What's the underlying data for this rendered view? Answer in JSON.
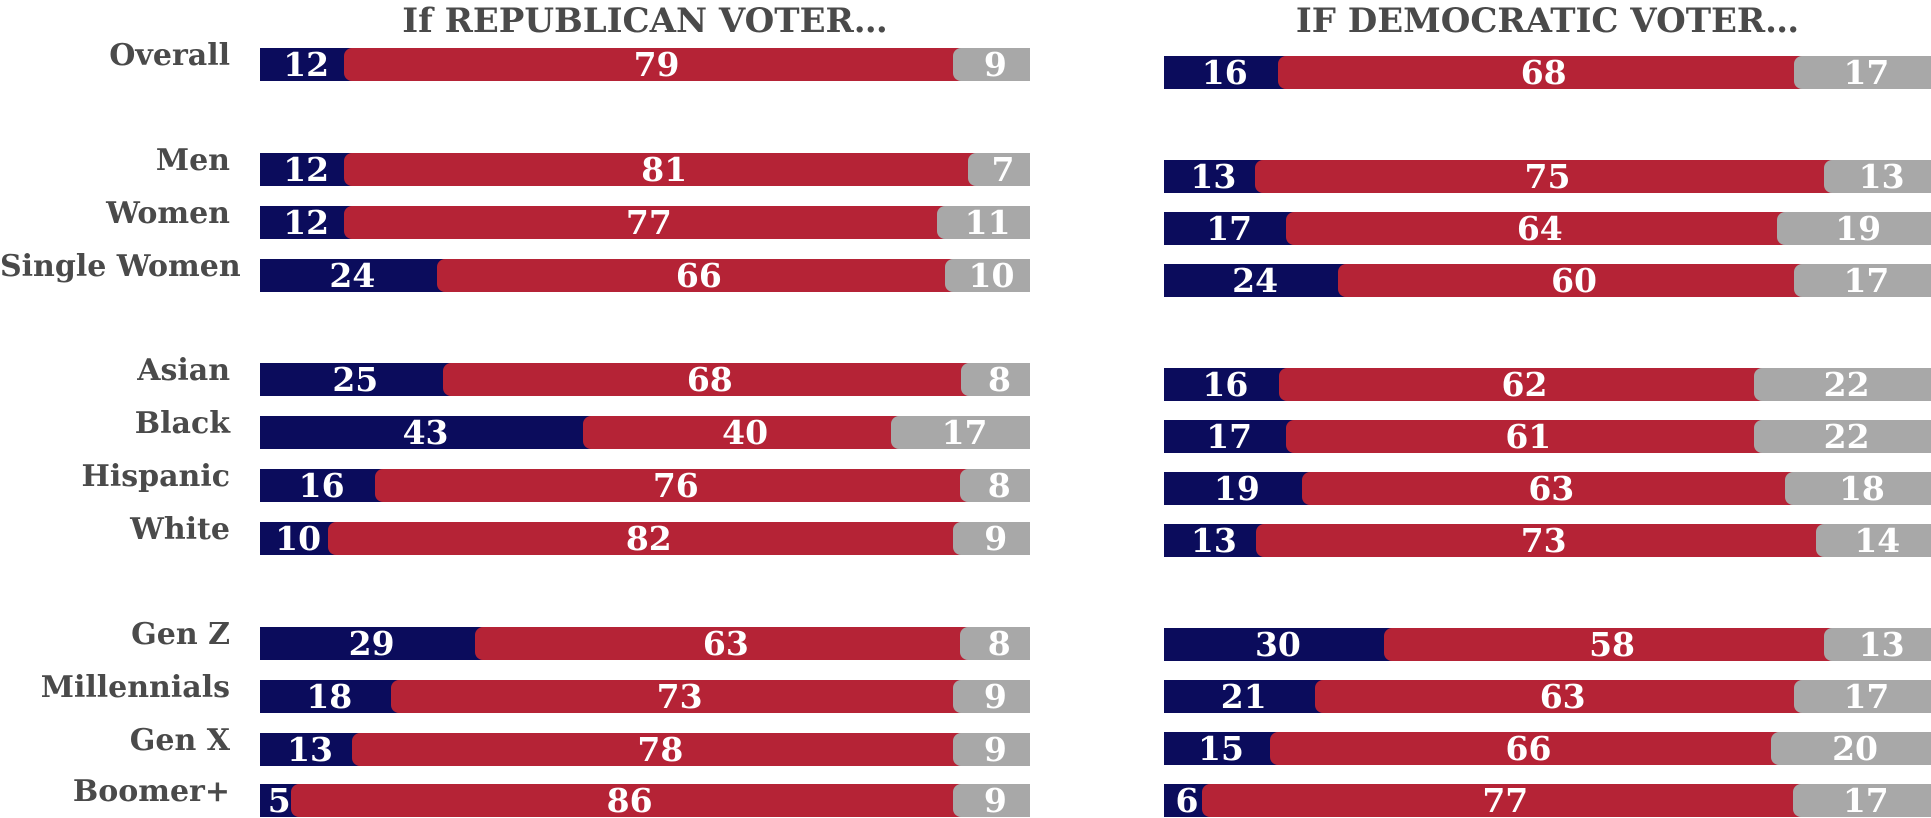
{
  "chart_data": [
    {
      "type": "bar",
      "orientation": "horizontal",
      "stacked": true,
      "title": "If REPUBLICAN VOTER…",
      "categories": [
        "Overall",
        "Men",
        "Women",
        "Single Women",
        "Asian",
        "Black",
        "Hispanic",
        "White",
        "Gen Z",
        "Millennials",
        "Gen X",
        "Boomer+"
      ],
      "series": [
        {
          "color": "#0b0c5c",
          "values": [
            12,
            12,
            12,
            24,
            25,
            43,
            16,
            10,
            29,
            18,
            13,
            5
          ]
        },
        {
          "color": "#b52336",
          "values": [
            79,
            81,
            77,
            66,
            68,
            40,
            76,
            82,
            63,
            73,
            78,
            86
          ]
        },
        {
          "color": "#a8a8a8",
          "values": [
            9,
            7,
            11,
            10,
            8,
            17,
            8,
            9,
            8,
            9,
            9,
            9
          ]
        }
      ]
    },
    {
      "type": "bar",
      "orientation": "horizontal",
      "stacked": true,
      "title": "IF DEMOCRATIC VOTER…",
      "categories": [
        "Overall",
        "Men",
        "Women",
        "Single Women",
        "Asian",
        "Black",
        "Hispanic",
        "White",
        "Gen Z",
        "Millennials",
        "Gen X",
        "Boomer+"
      ],
      "series": [
        {
          "color": "#0b0c5c",
          "values": [
            16,
            13,
            17,
            24,
            16,
            17,
            19,
            13,
            30,
            21,
            15,
            6
          ]
        },
        {
          "color": "#b52336",
          "values": [
            68,
            75,
            64,
            60,
            62,
            61,
            63,
            73,
            58,
            63,
            66,
            77
          ]
        },
        {
          "color": "#a8a8a8",
          "values": [
            17,
            13,
            19,
            17,
            22,
            22,
            18,
            14,
            13,
            17,
            20,
            17
          ]
        }
      ]
    }
  ]
}
